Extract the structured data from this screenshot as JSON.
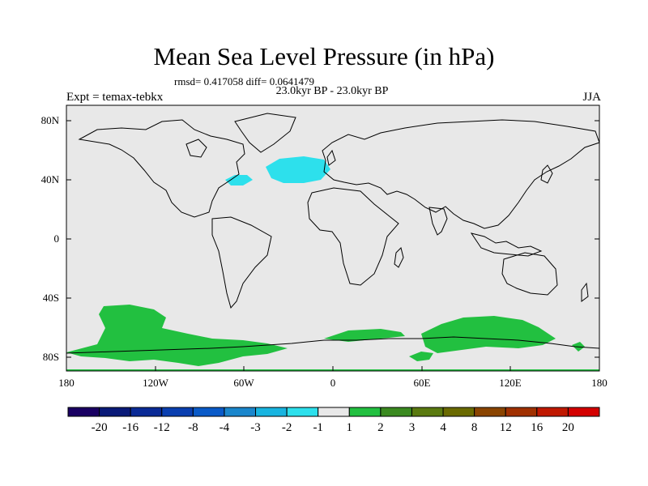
{
  "title": "Mean Sea Level Pressure (in hPa)",
  "stats_text": "rmsd= 0.417058 diff= 0.0641479",
  "period_text": "23.0kyr BP - 23.0kyr BP",
  "experiment_text": "Expt = temax-tebkx",
  "season_text": "JJA",
  "lat_labels": [
    "80N",
    "40N",
    "0",
    "40S",
    "80S"
  ],
  "lon_labels": [
    "180",
    "120W",
    "60W",
    "0",
    "60E",
    "120E",
    "180"
  ],
  "colorbar": {
    "labels": [
      "-20",
      "-16",
      "-12",
      "-8",
      "-4",
      "-3",
      "-2",
      "-1",
      "1",
      "2",
      "3",
      "4",
      "8",
      "12",
      "16",
      "20"
    ],
    "colors": [
      "#1a0063",
      "#0a1a78",
      "#0a2a96",
      "#0a3fb0",
      "#0a5ac8",
      "#1a86cc",
      "#18b4e0",
      "#2de0ec",
      "#e8e8e8",
      "#22c040",
      "#3a8a20",
      "#5a7a10",
      "#6a6a00",
      "#8a4400",
      "#a03000",
      "#c01800",
      "#d40000"
    ]
  },
  "map": {
    "background_color": "#e8e8e8",
    "positive_color": "#22c040",
    "negative_color": "#2de0ec"
  }
}
